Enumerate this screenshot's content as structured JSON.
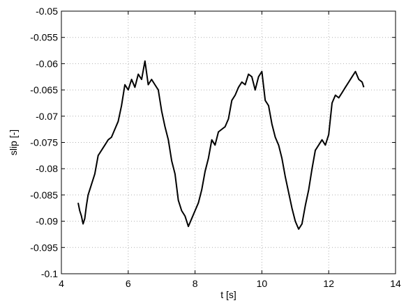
{
  "chart_data": {
    "type": "line",
    "title": "",
    "xlabel": "t [s]",
    "ylabel": "slip [-]",
    "xlim": [
      4,
      14
    ],
    "ylim": [
      -0.1,
      -0.05
    ],
    "xticks": [
      4,
      6,
      8,
      10,
      12,
      14
    ],
    "xtick_labels": [
      "4",
      "6",
      "8",
      "10",
      "12",
      "14"
    ],
    "yticks": [
      -0.1,
      -0.095,
      -0.09,
      -0.085,
      -0.08,
      -0.075,
      -0.07,
      -0.065,
      -0.06,
      -0.055,
      -0.05
    ],
    "ytick_labels": [
      "-0.1",
      "-0.095",
      "-0.09",
      "-0.085",
      "-0.08",
      "-0.075",
      "-0.07",
      "-0.065",
      "-0.06",
      "-0.055",
      "-0.05"
    ],
    "grid": true,
    "line_color": "#000000",
    "series": [
      {
        "x": [
          4.5,
          4.55,
          4.6,
          4.65,
          4.7,
          4.75,
          4.8,
          4.9,
          5.0,
          5.1,
          5.2,
          5.3,
          5.4,
          5.5,
          5.6,
          5.7,
          5.8,
          5.9,
          6.0,
          6.1,
          6.2,
          6.3,
          6.4,
          6.5,
          6.6,
          6.7,
          6.8,
          6.9,
          7.0,
          7.1,
          7.2,
          7.3,
          7.4,
          7.5,
          7.6,
          7.7,
          7.8,
          7.9,
          8.0,
          8.1,
          8.2,
          8.3,
          8.4,
          8.5,
          8.6,
          8.7,
          8.8,
          8.9,
          9.0,
          9.1,
          9.2,
          9.3,
          9.4,
          9.5,
          9.6,
          9.7,
          9.8,
          9.9,
          10.0,
          10.1,
          10.2,
          10.3,
          10.4,
          10.5,
          10.6,
          10.7,
          10.8,
          10.9,
          11.0,
          11.1,
          11.2,
          11.3,
          11.4,
          11.5,
          11.6,
          11.7,
          11.8,
          11.9,
          12.0,
          12.1,
          12.2,
          12.3,
          12.4,
          12.5,
          12.6,
          12.7,
          12.8,
          12.9,
          13.0,
          13.05
        ],
        "y": [
          -0.0865,
          -0.088,
          -0.089,
          -0.0905,
          -0.0895,
          -0.087,
          -0.085,
          -0.083,
          -0.081,
          -0.0775,
          -0.0765,
          -0.0755,
          -0.0745,
          -0.074,
          -0.0725,
          -0.071,
          -0.068,
          -0.064,
          -0.065,
          -0.063,
          -0.0645,
          -0.062,
          -0.063,
          -0.0595,
          -0.064,
          -0.063,
          -0.064,
          -0.065,
          -0.069,
          -0.072,
          -0.0745,
          -0.0785,
          -0.081,
          -0.086,
          -0.088,
          -0.089,
          -0.091,
          -0.0895,
          -0.088,
          -0.0865,
          -0.084,
          -0.0805,
          -0.078,
          -0.0745,
          -0.0755,
          -0.073,
          -0.0725,
          -0.072,
          -0.0705,
          -0.067,
          -0.066,
          -0.0645,
          -0.0635,
          -0.064,
          -0.062,
          -0.0625,
          -0.065,
          -0.0625,
          -0.0615,
          -0.067,
          -0.068,
          -0.0715,
          -0.074,
          -0.0755,
          -0.078,
          -0.0815,
          -0.0845,
          -0.0875,
          -0.09,
          -0.0915,
          -0.0905,
          -0.087,
          -0.084,
          -0.08,
          -0.0765,
          -0.0755,
          -0.0745,
          -0.0755,
          -0.0735,
          -0.0675,
          -0.066,
          -0.0665,
          -0.0655,
          -0.0645,
          -0.0635,
          -0.0625,
          -0.0615,
          -0.063,
          -0.0635,
          -0.0645
        ]
      }
    ]
  }
}
